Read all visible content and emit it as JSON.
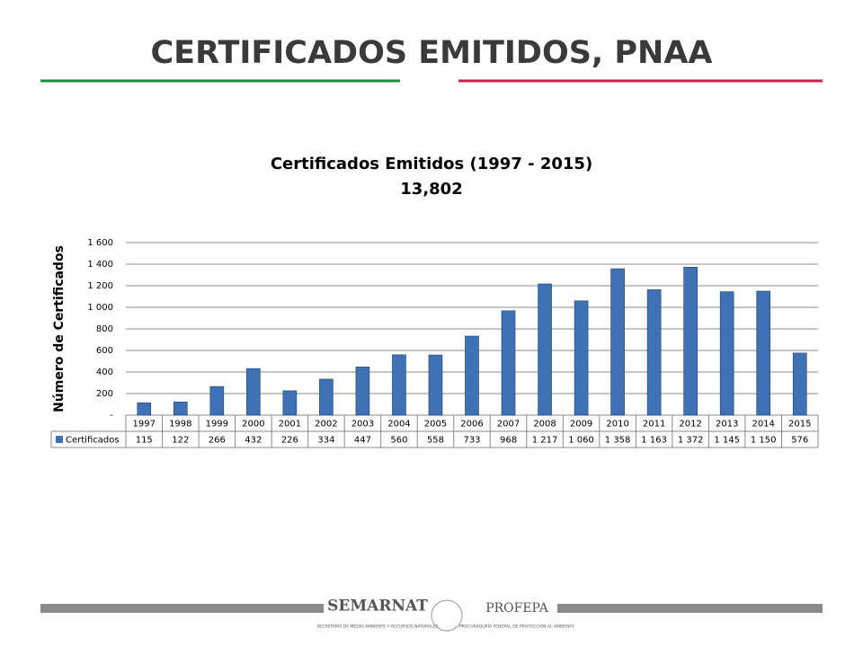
{
  "header": {
    "title": "CERTIFICADOS EMITIDOS, PNAA"
  },
  "chart_data": {
    "type": "bar",
    "title": "Certificados Emitidos (1997 - 2015)",
    "subtitle": "13,802",
    "y_label": "Número de Certificados",
    "categories": [
      "1997",
      "1998",
      "1999",
      "2000",
      "2001",
      "2002",
      "2003",
      "2004",
      "2005",
      "2006",
      "2007",
      "2008",
      "2009",
      "2010",
      "2011",
      "2012",
      "2013",
      "2014",
      "2015"
    ],
    "series": [
      {
        "name": "Certificados",
        "color": "#3f72b5",
        "values": [
          115,
          122,
          266,
          432,
          226,
          334,
          447,
          560,
          558,
          733,
          968,
          1217,
          1060,
          1358,
          1163,
          1372,
          1145,
          1150,
          576
        ],
        "value_labels": [
          "115",
          "122",
          "266",
          "432",
          "226",
          "334",
          "447",
          "560",
          "558",
          "733",
          "968",
          "1 217",
          "1 060",
          "1 358",
          "1 163",
          "1 372",
          "1 145",
          "1 150",
          "576"
        ]
      }
    ],
    "ylim": [
      0,
      1600
    ],
    "yticks": [
      {
        "value": 0,
        "label": "-"
      },
      200,
      400,
      600,
      800,
      {
        "value": 1000,
        "label": "1 000"
      },
      {
        "value": 1200,
        "label": "1 200"
      },
      {
        "value": 1400,
        "label": "1 400"
      },
      {
        "value": 1600,
        "label": "1 600"
      }
    ],
    "grid": true
  },
  "footer": {
    "semarnat": "SEMARNAT",
    "semarnat_sub": "SECRETARÍA DE MEDIO AMBIENTE Y RECURSOS NATURALES",
    "profepa": "PROFEPA",
    "profepa_sub": "PROCURADURÍA FEDERAL DE PROTECCIÓN AL AMBIENTE"
  }
}
